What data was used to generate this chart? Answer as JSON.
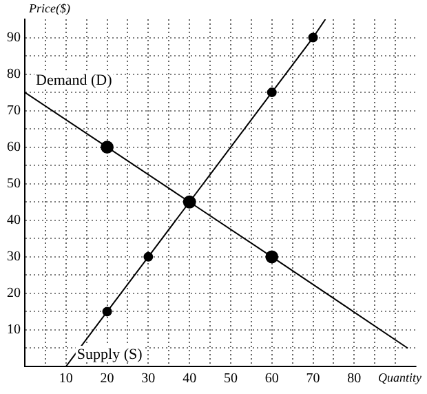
{
  "chart_data": {
    "type": "line",
    "xlabel": "Quantity",
    "ylabel": "Price($)",
    "series": [
      {
        "name": "Demand (D)",
        "color": "#000000",
        "x": [
          0,
          20,
          40,
          60,
          93
        ],
        "values": [
          75,
          60,
          45,
          30,
          5
        ]
      },
      {
        "name": "Supply (S)",
        "color": "#000000",
        "x": [
          10,
          20,
          30,
          40,
          60,
          70,
          73
        ],
        "values": [
          0,
          15,
          30,
          45,
          75,
          90,
          95
        ]
      }
    ],
    "xlim": [
      0,
      95
    ],
    "ylim": [
      0,
      95
    ],
    "xticks": [
      {
        "value": 5,
        "label": null
      },
      10,
      {
        "value": 15,
        "label": null
      },
      20,
      {
        "value": 25,
        "label": null
      },
      30,
      {
        "value": 35,
        "label": null
      },
      40,
      {
        "value": 45,
        "label": null
      },
      50,
      {
        "value": 55,
        "label": null
      },
      60,
      {
        "value": 65,
        "label": null
      },
      70,
      {
        "value": 75,
        "label": null
      },
      80,
      {
        "value": 85,
        "label": null
      },
      {
        "value": 90,
        "label": null
      }
    ],
    "yticks": [
      {
        "value": 5,
        "label": null
      },
      10,
      {
        "value": 15,
        "label": null
      },
      20,
      {
        "value": 25,
        "label": null
      },
      30,
      {
        "value": 35,
        "label": null
      },
      40,
      {
        "value": 45,
        "label": null
      },
      50,
      {
        "value": 55,
        "label": null
      },
      60,
      {
        "value": 65,
        "label": null
      },
      70,
      {
        "value": 75,
        "label": null
      },
      80,
      {
        "value": 85,
        "label": null
      },
      90
    ],
    "grid": true,
    "legend": false,
    "marker": "circle",
    "line_style": "solid"
  }
}
